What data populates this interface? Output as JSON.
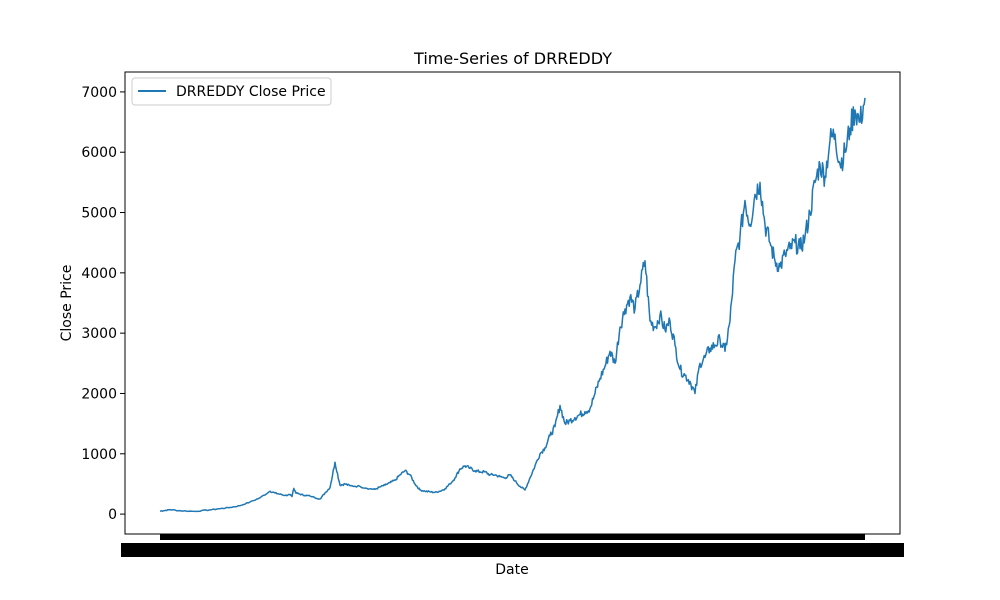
{
  "chart_data": {
    "type": "line",
    "title": "Time-Series of DRREDDY",
    "xlabel": "Date",
    "ylabel": "Close Price",
    "ylim": [
      -330,
      7330
    ],
    "yticks": [
      0,
      1000,
      2000,
      3000,
      4000,
      5000,
      6000,
      7000
    ],
    "ytick_labels": [
      "0",
      "1000",
      "2000",
      "3000",
      "4000",
      "5000",
      "6000",
      "7000"
    ],
    "xticks_note": "x tick labels are densely overlapped and illegible",
    "grid": false,
    "legend": {
      "placement": "upper-left",
      "entries": [
        "DRREDDY Close Price"
      ]
    },
    "colors": {
      "series": "#1f77b4",
      "axes": "#000000",
      "background": "#ffffff"
    },
    "series": [
      {
        "name": "DRREDDY Close Price",
        "x_index": [
          0,
          5,
          10,
          20,
          35,
          50,
          60,
          70,
          80,
          90,
          100,
          110,
          115,
          120,
          125,
          130,
          132,
          133,
          134,
          136,
          140,
          145,
          150,
          160,
          165,
          170,
          175,
          180,
          185,
          190,
          200,
          210,
          215,
          220,
          225,
          230,
          235,
          240,
          245,
          250,
          255,
          260,
          265,
          270,
          275,
          280,
          285,
          290,
          295,
          300,
          305,
          310,
          315,
          320,
          325,
          330,
          335,
          340,
          345,
          350,
          355,
          360,
          365,
          370,
          375,
          380,
          385,
          390,
          395,
          400,
          405,
          410,
          415,
          420,
          425,
          430,
          435,
          440,
          445,
          450,
          455,
          460,
          465,
          470,
          475,
          480,
          485,
          490,
          495,
          500,
          505,
          510,
          515,
          520,
          525,
          530,
          535,
          540,
          545,
          550,
          555,
          560,
          565,
          570,
          575,
          580,
          585,
          590,
          595,
          600,
          605,
          610,
          615,
          620,
          625,
          630,
          635,
          640,
          645,
          650,
          655,
          660,
          665,
          670,
          675,
          680,
          685,
          690,
          695,
          700,
          705
        ],
        "values": [
          50,
          60,
          75,
          55,
          45,
          70,
          90,
          110,
          140,
          200,
          270,
          380,
          350,
          330,
          310,
          320,
          290,
          380,
          420,
          350,
          330,
          310,
          300,
          250,
          350,
          440,
          860,
          480,
          500,
          470,
          460,
          420,
          410,
          450,
          480,
          520,
          560,
          650,
          720,
          650,
          500,
          400,
          380,
          370,
          360,
          380,
          420,
          500,
          600,
          750,
          800,
          760,
          720,
          700,
          700,
          650,
          650,
          620,
          600,
          650,
          550,
          460,
          400,
          600,
          800,
          1000,
          1100,
          1300,
          1450,
          1800,
          1500,
          1550,
          1600,
          1650,
          1700,
          1750,
          2000,
          2250,
          2450,
          2700,
          2500,
          3100,
          3400,
          3600,
          3400,
          3800,
          4200,
          3200,
          3100,
          3300,
          3050,
          3200,
          2800,
          2400,
          2300,
          2200,
          2000,
          2500,
          2600,
          2750,
          2800,
          2900,
          2700,
          3200,
          4200,
          4600,
          5200,
          4800,
          5300,
          5500,
          4800,
          4500,
          4200,
          4100,
          4300,
          4400,
          4500,
          4400,
          4600,
          5000,
          5500,
          5800,
          5600,
          6200,
          6300,
          5800,
          6000,
          6400,
          6700,
          6500,
          6900
        ]
      }
    ]
  }
}
